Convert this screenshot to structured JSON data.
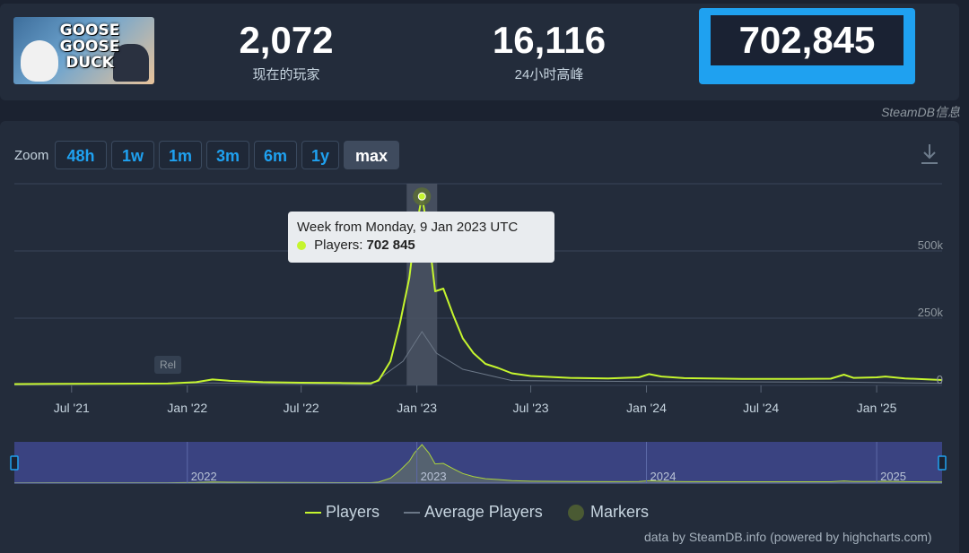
{
  "header": {
    "game_logo_text": "GOOSE GOOSE DUCK",
    "stats": [
      {
        "value": "2,072",
        "label": "现在的玩家"
      },
      {
        "value": "16,116",
        "label": "24小时高峰"
      },
      {
        "value": "702,845",
        "label": ""
      }
    ],
    "credit": "SteamDB信息"
  },
  "zoom": {
    "label": "Zoom",
    "buttons": [
      "48h",
      "1w",
      "1m",
      "3m",
      "6m",
      "1y",
      "max"
    ],
    "active": "max"
  },
  "tooltip": {
    "title": "Week from Monday, 9 Jan 2023 UTC",
    "series_label": "Players:",
    "value": "702 845"
  },
  "chart_data": {
    "type": "line",
    "x_axis": {
      "type": "date",
      "range": [
        "2021-04-01",
        "2025-04-15"
      ]
    },
    "y_axis": {
      "range": [
        0,
        750000
      ],
      "ticks": [
        0,
        250000,
        500000
      ],
      "tick_labels": [
        "0",
        "250k",
        "500k"
      ],
      "position": "right"
    },
    "x_tick_labels": [
      "Jul '21",
      "Jan '22",
      "Jul '22",
      "Jan '23",
      "Jul '23",
      "Jan '24",
      "Jul '24",
      "Jan '25"
    ],
    "x_tick_dates": [
      "2021-07-01",
      "2022-01-01",
      "2022-07-01",
      "2023-01-01",
      "2023-07-01",
      "2024-01-01",
      "2024-07-01",
      "2025-01-01"
    ],
    "grid": true,
    "series": [
      {
        "name": "Players",
        "color": "#c5f52e",
        "points": [
          [
            "2021-04-01",
            5000
          ],
          [
            "2021-06-01",
            6000
          ],
          [
            "2021-09-01",
            6500
          ],
          [
            "2021-12-01",
            7000
          ],
          [
            "2022-01-15",
            12000
          ],
          [
            "2022-02-10",
            22000
          ],
          [
            "2022-03-10",
            17000
          ],
          [
            "2022-05-01",
            12000
          ],
          [
            "2022-07-01",
            10000
          ],
          [
            "2022-09-01",
            9000
          ],
          [
            "2022-10-20",
            8000
          ],
          [
            "2022-11-01",
            18000
          ],
          [
            "2022-11-20",
            90000
          ],
          [
            "2022-12-05",
            230000
          ],
          [
            "2022-12-20",
            400000
          ],
          [
            "2022-12-28",
            550000
          ],
          [
            "2023-01-09",
            702845
          ],
          [
            "2023-01-20",
            550000
          ],
          [
            "2023-01-30",
            350000
          ],
          [
            "2023-02-12",
            360000
          ],
          [
            "2023-02-28",
            260000
          ],
          [
            "2023-03-15",
            175000
          ],
          [
            "2023-04-01",
            120000
          ],
          [
            "2023-04-20",
            80000
          ],
          [
            "2023-05-10",
            65000
          ],
          [
            "2023-06-01",
            45000
          ],
          [
            "2023-07-01",
            35000
          ],
          [
            "2023-09-01",
            28000
          ],
          [
            "2023-11-01",
            26000
          ],
          [
            "2023-12-20",
            30000
          ],
          [
            "2024-01-05",
            42000
          ],
          [
            "2024-01-25",
            33000
          ],
          [
            "2024-03-01",
            27000
          ],
          [
            "2024-06-01",
            24000
          ],
          [
            "2024-09-01",
            24000
          ],
          [
            "2024-10-20",
            25000
          ],
          [
            "2024-11-10",
            40000
          ],
          [
            "2024-11-25",
            28000
          ],
          [
            "2025-01-01",
            30000
          ],
          [
            "2025-01-15",
            33000
          ],
          [
            "2025-02-15",
            26000
          ],
          [
            "2025-04-15",
            20000
          ]
        ]
      },
      {
        "name": "Average Players",
        "color": "#6b7787",
        "points": [
          [
            "2021-04-01",
            2000
          ],
          [
            "2022-02-10",
            9000
          ],
          [
            "2022-10-20",
            3000
          ],
          [
            "2022-12-10",
            90000
          ],
          [
            "2023-01-09",
            200000
          ],
          [
            "2023-02-01",
            120000
          ],
          [
            "2023-03-15",
            60000
          ],
          [
            "2023-06-01",
            18000
          ],
          [
            "2024-01-05",
            14000
          ],
          [
            "2024-11-10",
            12000
          ],
          [
            "2025-04-15",
            8000
          ]
        ]
      }
    ],
    "markers": [
      {
        "date": "2023-01-09",
        "value": 702845
      },
      {
        "date": "2021-12-01",
        "label": "Rel"
      }
    ],
    "tooltip_date": "2023-01-09",
    "navigator": {
      "year_labels": [
        "2022",
        "2023",
        "2024",
        "2025"
      ],
      "year_dates": [
        "2022-01-01",
        "2023-01-01",
        "2024-01-01",
        "2025-01-01"
      ]
    },
    "legend": [
      "Players",
      "Average Players",
      "Markers"
    ]
  },
  "footer": {
    "credit": "data by SteamDB.info (powered by highcharts.com)"
  }
}
